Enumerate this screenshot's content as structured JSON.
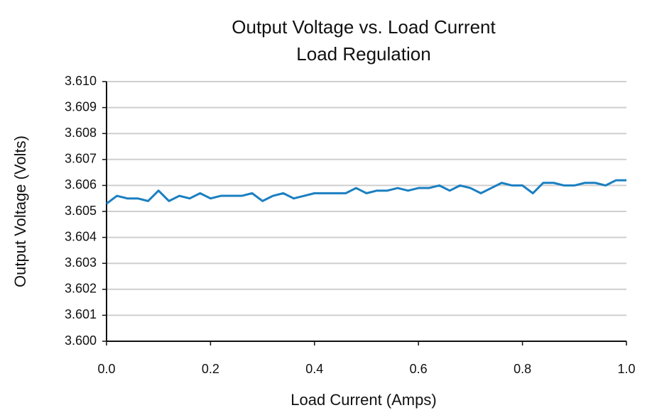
{
  "chart_data": {
    "type": "line",
    "title": "Output Voltage vs. Load Current",
    "subtitle": "Load Regulation",
    "x_label": "Load Current (Amps)",
    "y_label": "Output Voltage (Volts)",
    "x": [
      0,
      0.02,
      0.04,
      0.06,
      0.08,
      0.1,
      0.12,
      0.14,
      0.16,
      0.18,
      0.2,
      0.22,
      0.24,
      0.26,
      0.28,
      0.3,
      0.32,
      0.34,
      0.36,
      0.38,
      0.4,
      0.42,
      0.44,
      0.46,
      0.48,
      0.5,
      0.52,
      0.54,
      0.56,
      0.58,
      0.6,
      0.62,
      0.64,
      0.66,
      0.68,
      0.7,
      0.72,
      0.74,
      0.76,
      0.78,
      0.8,
      0.82,
      0.84,
      0.86,
      0.88,
      0.9,
      0.92,
      0.94,
      0.96,
      0.98,
      1
    ],
    "series": [
      {
        "color": "#1a7fc1",
        "values": [
          3.6053,
          3.6056,
          3.6055,
          3.6055,
          3.6054,
          3.6058,
          3.6054,
          3.6056,
          3.6055,
          3.6057,
          3.6055,
          3.6056,
          3.6056,
          3.6056,
          3.6057,
          3.6054,
          3.6056,
          3.6057,
          3.6055,
          3.6056,
          3.6057,
          3.6057,
          3.6057,
          3.6057,
          3.6059,
          3.6057,
          3.6058,
          3.6058,
          3.6059,
          3.6058,
          3.6059,
          3.6059,
          3.606,
          3.6058,
          3.606,
          3.6059,
          3.6057,
          3.6059,
          3.6061,
          3.606,
          3.606,
          3.6057,
          3.6061,
          3.6061,
          3.606,
          3.606,
          3.6061,
          3.6061,
          3.606,
          3.6062,
          3.6062
        ]
      }
    ],
    "xlim": [
      0,
      1
    ],
    "xticks": [
      {
        "value": 0,
        "label": "0.0"
      },
      0.2,
      0.4,
      0.6,
      0.8,
      {
        "value": 1,
        "label": "1.0"
      }
    ],
    "ylim": [
      3.6,
      3.61
    ],
    "yticks": [
      {
        "value": 3.6,
        "label": "3.600"
      },
      3.601,
      3.602,
      3.603,
      3.604,
      3.605,
      3.606,
      3.607,
      3.608,
      3.609,
      {
        "value": 3.61,
        "label": "3.610"
      }
    ],
    "grid": true
  }
}
